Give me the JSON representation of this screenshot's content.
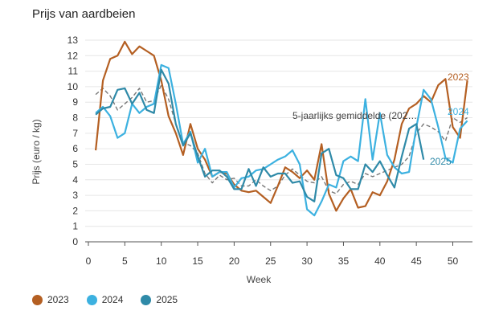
{
  "chart_data": {
    "type": "line",
    "title": "Prijs van aardbeien",
    "xlabel": "Week",
    "ylabel": "Prijs (euro / kg)",
    "xlim": [
      0,
      52
    ],
    "ylim": [
      0,
      13
    ],
    "x_ticks": [
      0,
      5,
      10,
      15,
      20,
      25,
      30,
      35,
      40,
      45,
      50
    ],
    "y_ticks": [
      0,
      1,
      2,
      3,
      4,
      5,
      6,
      7,
      8,
      9,
      10,
      11,
      12,
      13
    ],
    "grid": "horizontal",
    "legend_position": "bottom-left",
    "series": [
      {
        "name": "2023",
        "color": "#b45f22",
        "dashed": false,
        "end_label": "2023",
        "points": [
          [
            1,
            5.9
          ],
          [
            2,
            10.4
          ],
          [
            3,
            11.8
          ],
          [
            4,
            12.0
          ],
          [
            5,
            12.9
          ],
          [
            6,
            12.1
          ],
          [
            7,
            12.6
          ],
          [
            8,
            12.3
          ],
          [
            9,
            12.0
          ],
          [
            10,
            10.4
          ],
          [
            11,
            8.1
          ],
          [
            12,
            7.0
          ],
          [
            13,
            5.6
          ],
          [
            14,
            7.6
          ],
          [
            15,
            6.0
          ],
          [
            16,
            5.3
          ],
          [
            17,
            4.2
          ],
          [
            18,
            4.5
          ],
          [
            19,
            4.4
          ],
          [
            20,
            3.7
          ],
          [
            21,
            3.3
          ],
          [
            22,
            3.2
          ],
          [
            23,
            3.3
          ],
          [
            24,
            2.9
          ],
          [
            25,
            2.5
          ],
          [
            26,
            3.6
          ],
          [
            27,
            4.8
          ],
          [
            28,
            4.5
          ],
          [
            29,
            4.1
          ],
          [
            30,
            4.6
          ],
          [
            31,
            4.0
          ],
          [
            32,
            6.3
          ],
          [
            33,
            3.1
          ],
          [
            34,
            2.0
          ],
          [
            35,
            2.8
          ],
          [
            36,
            3.4
          ],
          [
            37,
            2.2
          ],
          [
            38,
            2.3
          ],
          [
            39,
            3.2
          ],
          [
            40,
            3.0
          ],
          [
            41,
            3.9
          ],
          [
            42,
            5.3
          ],
          [
            43,
            7.6
          ],
          [
            44,
            8.6
          ],
          [
            45,
            8.9
          ],
          [
            46,
            9.4
          ],
          [
            47,
            9.0
          ],
          [
            48,
            10.1
          ],
          [
            49,
            10.5
          ],
          [
            50,
            7.4
          ],
          [
            51,
            6.7
          ],
          [
            52,
            10.4
          ]
        ]
      },
      {
        "name": "2024",
        "color": "#3cb1e0",
        "dashed": false,
        "end_label": "2024",
        "points": [
          [
            1,
            8.3
          ],
          [
            2,
            8.7
          ],
          [
            3,
            8.1
          ],
          [
            4,
            6.7
          ],
          [
            5,
            7.0
          ],
          [
            6,
            8.9
          ],
          [
            7,
            8.3
          ],
          [
            8,
            8.7
          ],
          [
            9,
            8.9
          ],
          [
            10,
            11.4
          ],
          [
            11,
            11.2
          ],
          [
            12,
            8.9
          ],
          [
            13,
            6.3
          ],
          [
            14,
            7.1
          ],
          [
            15,
            5.1
          ],
          [
            16,
            6.0
          ],
          [
            17,
            4.2
          ],
          [
            18,
            4.5
          ],
          [
            19,
            4.5
          ],
          [
            20,
            3.5
          ],
          [
            21,
            4.1
          ],
          [
            22,
            4.2
          ],
          [
            23,
            4.6
          ],
          [
            24,
            4.7
          ],
          [
            25,
            5.0
          ],
          [
            26,
            5.3
          ],
          [
            27,
            5.5
          ],
          [
            28,
            5.9
          ],
          [
            29,
            5.0
          ],
          [
            30,
            2.1
          ],
          [
            31,
            1.7
          ],
          [
            32,
            2.6
          ],
          [
            33,
            3.7
          ],
          [
            34,
            3.5
          ],
          [
            35,
            5.2
          ],
          [
            36,
            5.5
          ],
          [
            37,
            5.2
          ],
          [
            38,
            9.2
          ],
          [
            39,
            5.3
          ],
          [
            40,
            8.3
          ],
          [
            41,
            5.6
          ],
          [
            42,
            4.8
          ],
          [
            43,
            4.4
          ],
          [
            44,
            4.5
          ],
          [
            45,
            7.4
          ],
          [
            46,
            9.8
          ],
          [
            47,
            9.2
          ],
          [
            48,
            7.4
          ],
          [
            49,
            5.4
          ],
          [
            50,
            5.1
          ],
          [
            51,
            7.3
          ],
          [
            52,
            7.8
          ]
        ]
      },
      {
        "name": "2025",
        "color": "#2f8aa8",
        "dashed": false,
        "end_label": "2025",
        "points": [
          [
            1,
            8.2
          ],
          [
            2,
            8.6
          ],
          [
            3,
            8.7
          ],
          [
            4,
            9.8
          ],
          [
            5,
            9.9
          ],
          [
            6,
            8.9
          ],
          [
            7,
            9.6
          ],
          [
            8,
            8.5
          ],
          [
            9,
            8.3
          ],
          [
            10,
            11.1
          ],
          [
            11,
            10.2
          ],
          [
            12,
            7.6
          ],
          [
            13,
            6.2
          ],
          [
            14,
            7.0
          ],
          [
            15,
            5.5
          ],
          [
            16,
            4.2
          ],
          [
            17,
            4.6
          ],
          [
            18,
            4.6
          ],
          [
            19,
            4.2
          ],
          [
            20,
            3.4
          ],
          [
            21,
            3.4
          ],
          [
            22,
            4.7
          ],
          [
            23,
            3.6
          ],
          [
            24,
            4.8
          ],
          [
            25,
            4.2
          ],
          [
            26,
            4.4
          ],
          [
            27,
            4.4
          ],
          [
            28,
            3.8
          ],
          [
            29,
            3.9
          ],
          [
            30,
            2.9
          ],
          [
            31,
            2.6
          ],
          [
            32,
            5.7
          ],
          [
            33,
            6.0
          ],
          [
            34,
            4.3
          ],
          [
            35,
            4.1
          ],
          [
            36,
            3.4
          ],
          [
            37,
            3.4
          ],
          [
            38,
            5.0
          ],
          [
            39,
            4.5
          ],
          [
            40,
            5.2
          ],
          [
            41,
            4.3
          ],
          [
            42,
            3.5
          ],
          [
            43,
            5.5
          ],
          [
            44,
            7.3
          ],
          [
            45,
            7.6
          ],
          [
            46,
            5.3
          ]
        ]
      },
      {
        "name": "5-jaarlijks gemiddelde (202…",
        "color": "#777777",
        "dashed": true,
        "end_label": "5-jaarlijks gemiddelde (202…",
        "points": [
          [
            1,
            9.5
          ],
          [
            2,
            9.9
          ],
          [
            3,
            9.4
          ],
          [
            4,
            8.5
          ],
          [
            5,
            8.9
          ],
          [
            6,
            9.3
          ],
          [
            7,
            9.9
          ],
          [
            8,
            9.0
          ],
          [
            9,
            9.1
          ],
          [
            10,
            10.1
          ],
          [
            11,
            9.2
          ],
          [
            12,
            7.6
          ],
          [
            13,
            6.4
          ],
          [
            14,
            6.2
          ],
          [
            15,
            5.7
          ],
          [
            16,
            4.4
          ],
          [
            17,
            3.8
          ],
          [
            18,
            4.3
          ],
          [
            19,
            4.0
          ],
          [
            20,
            4.1
          ],
          [
            21,
            3.6
          ],
          [
            22,
            3.6
          ],
          [
            23,
            4.0
          ],
          [
            24,
            3.6
          ],
          [
            25,
            3.3
          ],
          [
            26,
            3.6
          ],
          [
            27,
            4.3
          ],
          [
            28,
            4.7
          ],
          [
            29,
            4.3
          ],
          [
            30,
            3.9
          ],
          [
            31,
            3.8
          ],
          [
            32,
            4.2
          ],
          [
            33,
            3.3
          ],
          [
            34,
            3.1
          ],
          [
            35,
            3.7
          ],
          [
            36,
            3.9
          ],
          [
            37,
            3.7
          ],
          [
            38,
            4.4
          ],
          [
            39,
            4.2
          ],
          [
            40,
            4.4
          ],
          [
            41,
            4.6
          ],
          [
            42,
            4.8
          ],
          [
            43,
            5.0
          ],
          [
            44,
            5.5
          ],
          [
            45,
            7.0
          ],
          [
            46,
            7.6
          ],
          [
            47,
            7.4
          ],
          [
            48,
            7.1
          ],
          [
            49,
            6.5
          ],
          [
            50,
            8.0
          ],
          [
            51,
            7.7
          ],
          [
            52,
            8.0
          ]
        ]
      }
    ]
  }
}
